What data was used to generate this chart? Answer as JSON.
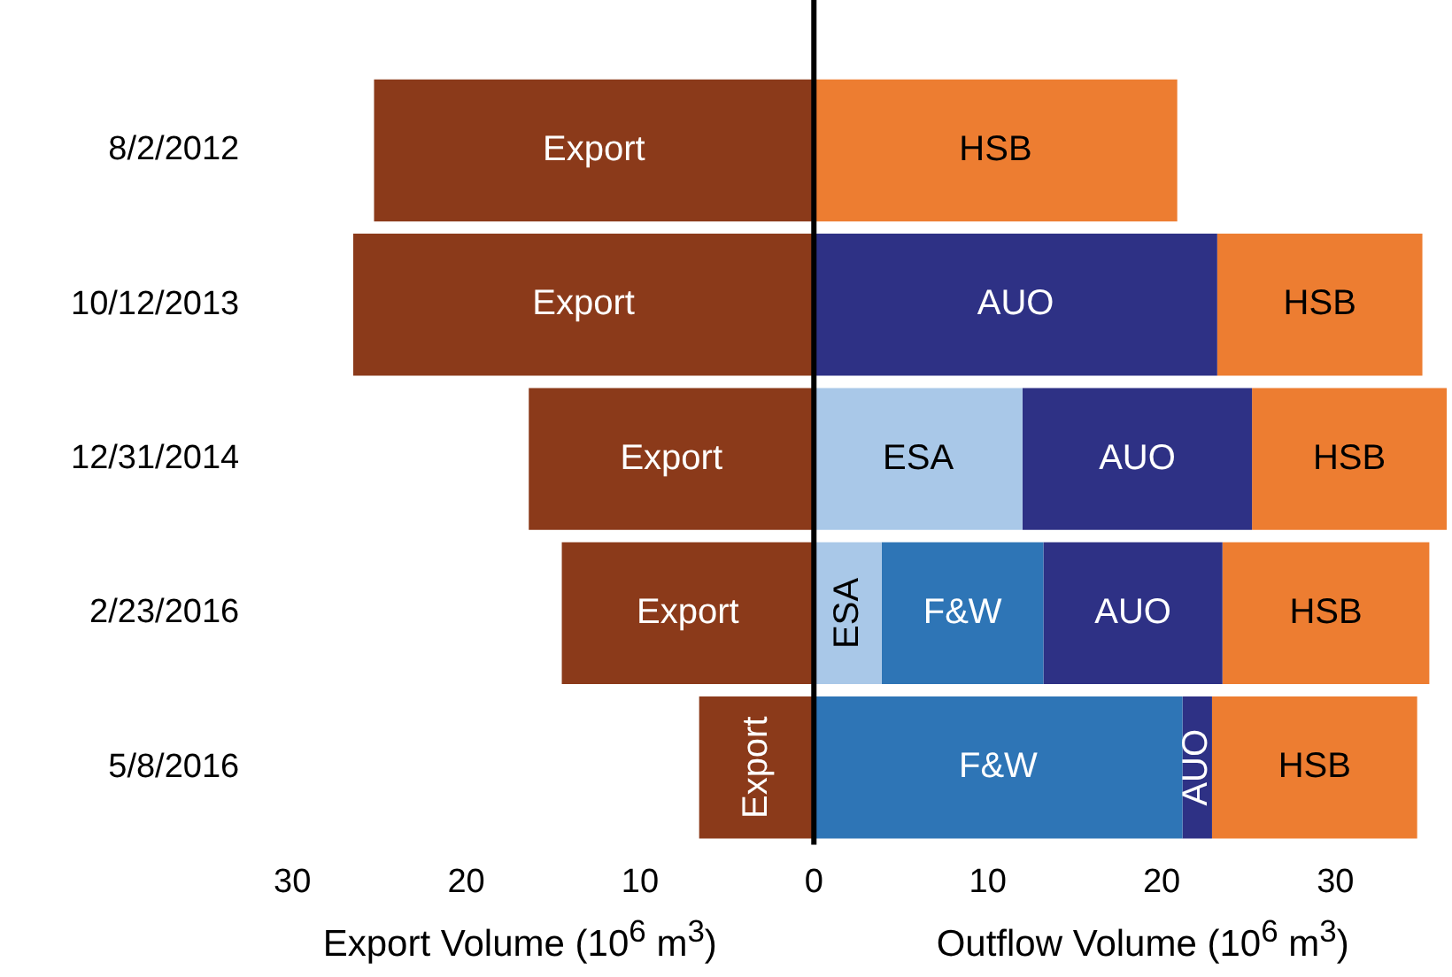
{
  "chart_data": {
    "type": "bar",
    "orientation": "horizontal",
    "stacked": true,
    "categories": [
      "8/2/2012",
      "10/12/2013",
      "12/31/2014",
      "2/23/2016",
      "5/8/2016"
    ],
    "series": [
      {
        "name": "Export",
        "color": "#8b3a1a",
        "values": [
          -25.3,
          -26.5,
          -16.4,
          -14.5,
          -6.6
        ]
      },
      {
        "name": "ESA",
        "color": "#a9c8e8",
        "values": [
          null,
          null,
          12.0,
          3.9,
          null
        ]
      },
      {
        "name": "F&W",
        "color": "#2e75b6",
        "values": [
          null,
          null,
          null,
          9.3,
          21.2
        ]
      },
      {
        "name": "AUO",
        "color": "#2e3185",
        "values": [
          null,
          23.2,
          13.2,
          10.3,
          1.7
        ]
      },
      {
        "name": "HSB",
        "color": "#ed7d31",
        "values": [
          20.9,
          11.8,
          11.2,
          11.9,
          11.8
        ]
      }
    ],
    "xlim": [
      -30,
      36.5
    ],
    "xticks": [
      {
        "value": -30,
        "label": "30"
      },
      {
        "value": -20,
        "label": "20"
      },
      {
        "value": -10,
        "label": "10"
      },
      0,
      10,
      20,
      30
    ],
    "xlabel": "Outflow Volume (10$^{6}$ m$^{3}$)",
    "annotations": [
      "Export Volume (10$^{6}$ m$^{3}$)"
    ],
    "ref_lines": [
      {
        "axis": "x",
        "value": 0,
        "color": "#000000"
      }
    ],
    "grid": false,
    "legend": false
  }
}
